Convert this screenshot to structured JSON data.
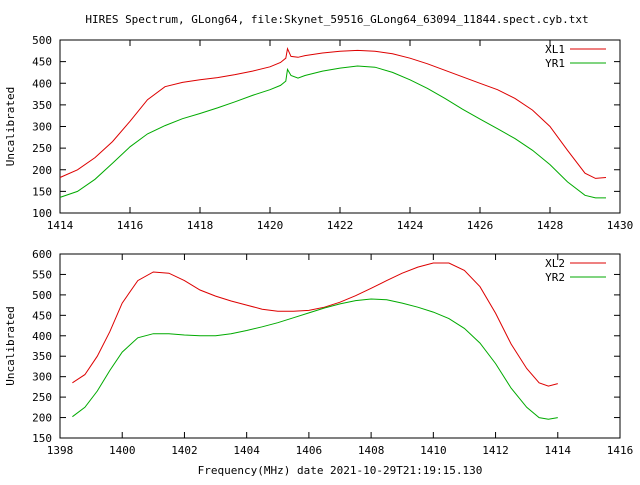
{
  "chart_data": [
    {
      "type": "line",
      "title": "HIRES Spectrum, GLong64, file:Skynet_59516_GLong64_63094_11844.spect.cyb.txt",
      "xlabel": "",
      "ylabel": "Uncalibrated",
      "xlim": [
        1414,
        1430
      ],
      "ylim": [
        100,
        500
      ],
      "xticks": [
        1414,
        1416,
        1418,
        1420,
        1422,
        1424,
        1426,
        1428,
        1430
      ],
      "yticks": [
        100,
        150,
        200,
        250,
        300,
        350,
        400,
        450,
        500
      ],
      "legend_position": "top-right",
      "grid": false,
      "series": [
        {
          "name": "XL1",
          "color": "#dd0000",
          "x": [
            1414.0,
            1414.5,
            1415.0,
            1415.5,
            1416.0,
            1416.5,
            1417.0,
            1417.5,
            1418.0,
            1418.5,
            1419.0,
            1419.5,
            1420.0,
            1420.3,
            1420.45,
            1420.5,
            1420.6,
            1420.8,
            1421.0,
            1421.5,
            1422.0,
            1422.5,
            1423.0,
            1423.5,
            1424.0,
            1424.5,
            1425.0,
            1425.5,
            1426.0,
            1426.5,
            1427.0,
            1427.5,
            1428.0,
            1428.5,
            1429.0,
            1429.3,
            1429.6
          ],
          "y": [
            182,
            200,
            228,
            265,
            312,
            362,
            392,
            402,
            408,
            413,
            420,
            428,
            438,
            448,
            458,
            480,
            462,
            460,
            464,
            470,
            474,
            476,
            474,
            468,
            458,
            445,
            430,
            415,
            400,
            385,
            365,
            338,
            300,
            245,
            192,
            180,
            182
          ]
        },
        {
          "name": "YR1",
          "color": "#00aa00",
          "x": [
            1414.0,
            1414.5,
            1415.0,
            1415.5,
            1416.0,
            1416.5,
            1417.0,
            1417.5,
            1418.0,
            1418.5,
            1419.0,
            1419.5,
            1420.0,
            1420.3,
            1420.45,
            1420.5,
            1420.6,
            1420.8,
            1421.0,
            1421.5,
            1422.0,
            1422.5,
            1423.0,
            1423.5,
            1424.0,
            1424.5,
            1425.0,
            1425.5,
            1426.0,
            1426.5,
            1427.0,
            1427.5,
            1428.0,
            1428.5,
            1429.0,
            1429.3,
            1429.6
          ],
          "y": [
            136,
            150,
            178,
            215,
            253,
            283,
            302,
            318,
            330,
            343,
            357,
            372,
            385,
            395,
            405,
            432,
            418,
            412,
            418,
            428,
            435,
            440,
            437,
            425,
            408,
            388,
            365,
            340,
            317,
            295,
            272,
            245,
            212,
            172,
            141,
            135,
            135
          ]
        }
      ]
    },
    {
      "type": "line",
      "title": "",
      "xlabel": "Frequency(MHz) date 2021-10-29T21:19:15.130",
      "ylabel": "Uncalibrated",
      "xlim": [
        1398,
        1416
      ],
      "ylim": [
        150,
        600
      ],
      "xticks": [
        1398,
        1400,
        1402,
        1404,
        1406,
        1408,
        1410,
        1412,
        1414,
        1416
      ],
      "yticks": [
        150,
        200,
        250,
        300,
        350,
        400,
        450,
        500,
        550,
        600
      ],
      "legend_position": "top-right",
      "grid": false,
      "series": [
        {
          "name": "XL2",
          "color": "#dd0000",
          "x": [
            1398.4,
            1398.8,
            1399.2,
            1399.6,
            1400.0,
            1400.5,
            1401.0,
            1401.5,
            1402.0,
            1402.5,
            1403.0,
            1403.5,
            1404.0,
            1404.5,
            1405.0,
            1405.5,
            1406.0,
            1406.5,
            1407.0,
            1407.5,
            1408.0,
            1408.5,
            1409.0,
            1409.5,
            1410.0,
            1410.5,
            1411.0,
            1411.5,
            1412.0,
            1412.5,
            1413.0,
            1413.4,
            1413.7,
            1414.0
          ],
          "y": [
            285,
            305,
            350,
            410,
            480,
            535,
            556,
            553,
            535,
            512,
            497,
            485,
            475,
            465,
            460,
            460,
            462,
            470,
            482,
            498,
            516,
            535,
            553,
            568,
            578,
            578,
            560,
            520,
            455,
            380,
            320,
            285,
            277,
            283
          ]
        },
        {
          "name": "YR2",
          "color": "#00aa00",
          "x": [
            1398.4,
            1398.8,
            1399.2,
            1399.6,
            1400.0,
            1400.5,
            1401.0,
            1401.5,
            1402.0,
            1402.5,
            1403.0,
            1403.5,
            1404.0,
            1404.5,
            1405.0,
            1405.5,
            1406.0,
            1406.5,
            1407.0,
            1407.5,
            1408.0,
            1408.5,
            1409.0,
            1409.5,
            1410.0,
            1410.5,
            1411.0,
            1411.5,
            1412.0,
            1412.5,
            1413.0,
            1413.4,
            1413.7,
            1414.0
          ],
          "y": [
            202,
            225,
            265,
            315,
            360,
            395,
            405,
            405,
            402,
            400,
            400,
            405,
            413,
            422,
            432,
            444,
            456,
            468,
            478,
            486,
            490,
            488,
            480,
            470,
            458,
            442,
            418,
            382,
            332,
            272,
            225,
            200,
            196,
            200
          ]
        }
      ]
    }
  ]
}
